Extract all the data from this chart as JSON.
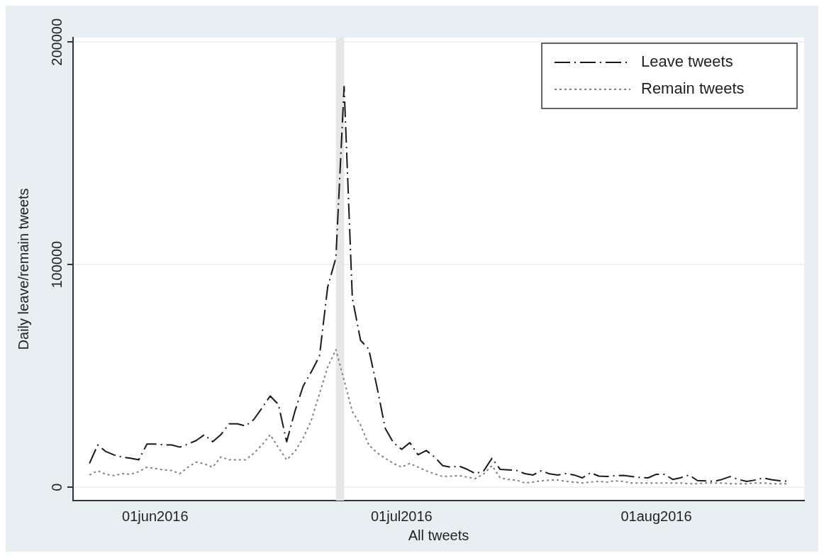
{
  "chart_data": {
    "type": "line",
    "xlabel": "All tweets",
    "ylabel": "Daily leave/remain tweets",
    "x": [
      "2016-05-24",
      "2016-05-25",
      "2016-05-26",
      "2016-05-27",
      "2016-05-28",
      "2016-05-29",
      "2016-05-30",
      "2016-05-31",
      "2016-06-01",
      "2016-06-02",
      "2016-06-03",
      "2016-06-04",
      "2016-06-05",
      "2016-06-06",
      "2016-06-07",
      "2016-06-08",
      "2016-06-09",
      "2016-06-10",
      "2016-06-11",
      "2016-06-12",
      "2016-06-13",
      "2016-06-14",
      "2016-06-15",
      "2016-06-16",
      "2016-06-17",
      "2016-06-18",
      "2016-06-19",
      "2016-06-20",
      "2016-06-21",
      "2016-06-22",
      "2016-06-23",
      "2016-06-24",
      "2016-06-25",
      "2016-06-26",
      "2016-06-27",
      "2016-06-28",
      "2016-06-29",
      "2016-06-30",
      "2016-07-01",
      "2016-07-02",
      "2016-07-03",
      "2016-07-04",
      "2016-07-05",
      "2016-07-06",
      "2016-07-07",
      "2016-07-08",
      "2016-07-09",
      "2016-07-10",
      "2016-07-11",
      "2016-07-12",
      "2016-07-13",
      "2016-07-14",
      "2016-07-15",
      "2016-07-16",
      "2016-07-17",
      "2016-07-18",
      "2016-07-19",
      "2016-07-20",
      "2016-07-21",
      "2016-07-22",
      "2016-07-23",
      "2016-07-24",
      "2016-07-25",
      "2016-07-26",
      "2016-07-27",
      "2016-07-28",
      "2016-07-29",
      "2016-07-30",
      "2016-07-31",
      "2016-08-01",
      "2016-08-02",
      "2016-08-03",
      "2016-08-04",
      "2016-08-05",
      "2016-08-06",
      "2016-08-07",
      "2016-08-08",
      "2016-08-09",
      "2016-08-10",
      "2016-08-11",
      "2016-08-12",
      "2016-08-13",
      "2016-08-14",
      "2016-08-15",
      "2016-08-16",
      "2016-08-17"
    ],
    "series": [
      {
        "name": "Leave tweets",
        "color": "#1a1a1a",
        "line_style": "dashed",
        "values": [
          10700,
          19000,
          16000,
          14500,
          13500,
          13000,
          12300,
          19400,
          19400,
          19000,
          19000,
          18000,
          19400,
          21000,
          23600,
          20400,
          23600,
          28500,
          28500,
          27500,
          30400,
          35600,
          41000,
          37200,
          20400,
          34000,
          45300,
          51800,
          58900,
          90000,
          103000,
          180000,
          85000,
          66000,
          62000,
          45000,
          26500,
          20000,
          17000,
          20000,
          14600,
          16500,
          13600,
          9700,
          9000,
          9500,
          8000,
          6100,
          7400,
          13000,
          8000,
          7800,
          7500,
          6100,
          5500,
          7400,
          6000,
          5500,
          6100,
          5500,
          4200,
          6500,
          5000,
          4800,
          5200,
          5300,
          4800,
          4400,
          4200,
          5800,
          5800,
          3500,
          4300,
          5500,
          3000,
          2800,
          2600,
          3500,
          4800,
          3500,
          2600,
          3200,
          4200,
          3400,
          2900,
          2700
        ]
      },
      {
        "name": "Remain tweets",
        "color": "#808080",
        "line_style": "dotted",
        "values": [
          5500,
          7400,
          5800,
          5200,
          6100,
          5800,
          7000,
          9000,
          8400,
          7800,
          7500,
          6100,
          9000,
          11300,
          10500,
          9000,
          13600,
          12300,
          12300,
          12300,
          15200,
          19000,
          23600,
          17800,
          12300,
          16000,
          22000,
          30000,
          42000,
          54000,
          61800,
          48000,
          34000,
          28000,
          19000,
          15500,
          13000,
          10700,
          9000,
          10700,
          9000,
          7400,
          6000,
          4800,
          5000,
          5200,
          4500,
          3900,
          6000,
          9700,
          4200,
          3500,
          3200,
          1900,
          2300,
          2900,
          3200,
          3200,
          2600,
          2300,
          1900,
          2300,
          2600,
          2300,
          2900,
          2600,
          1900,
          1900,
          1900,
          1900,
          1900,
          1900,
          1900,
          1600,
          1600,
          1900,
          1900,
          1900,
          1600,
          1600,
          1600,
          1900,
          1900,
          1600,
          1600,
          1600
        ]
      }
    ],
    "xlim": [
      "2016-05-22",
      "2016-08-19"
    ],
    "xticks": [
      {
        "value": "2016-06-01",
        "label": "01jun2016"
      },
      {
        "value": "2016-07-01",
        "label": "01jul2016"
      },
      {
        "value": "2016-08-01",
        "label": "01aug2016"
      }
    ],
    "ylim": [
      -6000,
      202000
    ],
    "yticks": [
      0,
      100000,
      200000
    ],
    "bands": [
      {
        "axis": "x",
        "from": "2016-06-23",
        "to": "2016-06-24",
        "color": "#e6e6e6"
      }
    ],
    "grid": "y",
    "legend": "top right",
    "marker": "none"
  }
}
